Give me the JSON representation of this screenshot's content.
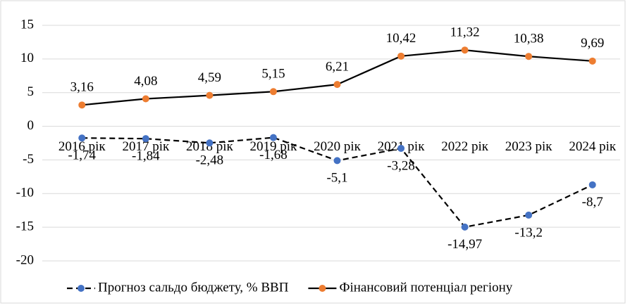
{
  "chart_data": {
    "type": "line",
    "categories": [
      "2016 рік",
      "2017 рік",
      "2018 рік",
      "2019 рік",
      "2020 рік",
      "2021 рік",
      "2022 рік",
      "2023 рік",
      "2024 рік"
    ],
    "series": [
      {
        "name": "Прогноз сальдо бюджету, % ВВП",
        "color": "#4472c4",
        "line_color": "#000000",
        "dashed": true,
        "values": [
          -1.74,
          -1.84,
          -2.48,
          -1.68,
          -5.1,
          -3.28,
          -14.97,
          -13.2,
          -8.7
        ],
        "value_labels": [
          "-1,74",
          "-1,84",
          "-2,48",
          "-1,68",
          "-5,1",
          "-3,28",
          "-14,97",
          "-13,2",
          "-8,7"
        ]
      },
      {
        "name": "Фінансовий потенціал регіону",
        "color": "#ed7d31",
        "line_color": "#000000",
        "dashed": false,
        "values": [
          3.16,
          4.08,
          4.59,
          5.15,
          6.21,
          10.42,
          11.32,
          10.38,
          9.69
        ],
        "value_labels": [
          "3,16",
          "4,08",
          "4,59",
          "5,15",
          "6,21",
          "10,42",
          "11,32",
          "10,38",
          "9,69"
        ]
      }
    ],
    "ylim": [
      -20,
      15
    ],
    "yticks": [
      -20,
      -15,
      -10,
      -5,
      0,
      5,
      10,
      15
    ],
    "grid": true,
    "legend": "bottom"
  }
}
